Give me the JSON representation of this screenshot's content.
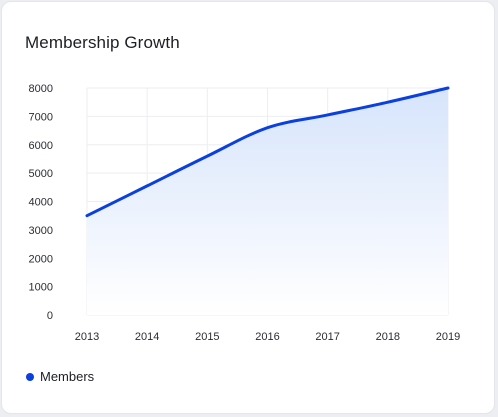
{
  "card": {
    "title": "Membership Growth"
  },
  "chart_data": {
    "type": "area",
    "title": "Membership Growth",
    "xlabel": "",
    "ylabel": "",
    "x": [
      "2013",
      "2014",
      "2015",
      "2016",
      "2017",
      "2018",
      "2019"
    ],
    "series": [
      {
        "name": "Members",
        "values": [
          3500,
          4550,
          5600,
          6600,
          7050,
          7500,
          8000
        ]
      }
    ],
    "ylim": [
      0,
      8000
    ],
    "yticks": [
      0,
      1000,
      2000,
      3000,
      4000,
      5000,
      6000,
      7000,
      8000
    ],
    "grid": true,
    "legend_position": "bottom-left",
    "colors": {
      "line": "#0a3fe0",
      "fill_top": "#d6e4fb",
      "fill_bottom": "#ffffff",
      "grid": "#eceef1"
    }
  }
}
